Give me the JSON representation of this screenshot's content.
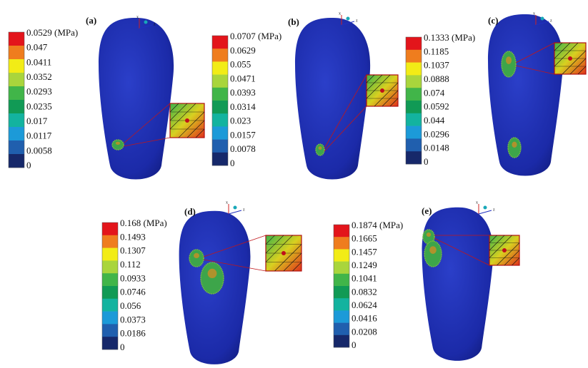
{
  "colorbar_colors": [
    "#e3151b",
    "#ef7d1e",
    "#f2ec16",
    "#a9d53c",
    "#41b549",
    "#119a55",
    "#13b39f",
    "#1c9ad8",
    "#205fae",
    "#16286a"
  ],
  "panels": [
    {
      "label": "(a)",
      "legend": [
        "0.0529 (MPa)",
        "0.047",
        "0.0411",
        "0.0352",
        "0.0293",
        "0.0235",
        "0.017",
        "0.0117",
        "0.0058",
        "0"
      ],
      "triad": [
        "x",
        "z"
      ]
    },
    {
      "label": "(b)",
      "legend": [
        "0.0707 (MPa)",
        "0.0629",
        "0.055",
        "0.0471",
        "0.0393",
        "0.0314",
        "0.023",
        "0.0157",
        "0.0078",
        "0"
      ],
      "triad": [
        "x",
        "z"
      ]
    },
    {
      "label": "(c)",
      "legend": [
        "0.1333 (MPa)",
        "0.1185",
        "0.1037",
        "0.0888",
        "0.074",
        "0.0592",
        "0.044",
        "0.0296",
        "0.0148",
        "0"
      ],
      "triad": [
        "x",
        "z"
      ]
    },
    {
      "label": "(d)",
      "legend": [
        "0.168 (MPa)",
        "0.1493",
        "0.1307",
        "0.112",
        "0.0933",
        "0.0746",
        "0.056",
        "0.0373",
        "0.0186",
        "0"
      ],
      "triad": [
        "x",
        "z"
      ]
    },
    {
      "label": "(e)",
      "legend": [
        "0.1874 (MPa)",
        "0.1665",
        "0.1457",
        "0.1249",
        "0.1041",
        "0.0832",
        "0.0624",
        "0.0416",
        "0.0208",
        "0"
      ],
      "triad": [
        "x",
        "z"
      ]
    }
  ]
}
